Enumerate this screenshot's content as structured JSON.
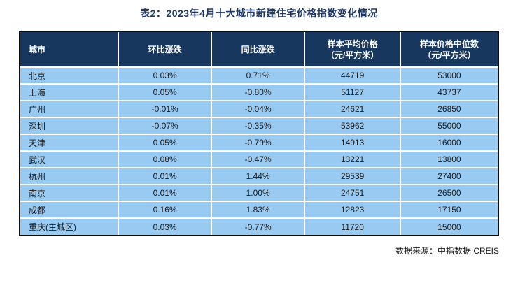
{
  "page": {
    "title": "表2：2023年4月十大城市新建住宅价格指数变化情况",
    "source_note": "数据来源：中指数据 CREIS"
  },
  "colors": {
    "title_text": "#1F3864",
    "header_bg": "#17375E",
    "header_text": "#FFFFFF",
    "row_bg": "#99CAF2",
    "row_text": "#1A1A1A",
    "divider": "#FFFFFF",
    "outer_border": "#0D0D0D",
    "page_bg": "#FFFFFF"
  },
  "table": {
    "headers": [
      {
        "line1": "城市",
        "line2": ""
      },
      {
        "line1": "环比涨跌",
        "line2": ""
      },
      {
        "line1": "同比涨跌",
        "line2": ""
      },
      {
        "line1": "样本平均价格",
        "line2": "（元/平方米）"
      },
      {
        "line1": "样本价格中位数",
        "line2": "（元/平方米）"
      }
    ]
  },
  "chart_data": {
    "type": "table",
    "title": "表2：2023年4月十大城市新建住宅价格指数变化情况",
    "columns": [
      "城市",
      "环比涨跌",
      "同比涨跌",
      "样本平均价格（元/平方米）",
      "样本价格中位数（元/平方米）"
    ],
    "rows": [
      [
        "北京",
        "0.03%",
        "0.71%",
        "44719",
        "53000"
      ],
      [
        "上海",
        "0.05%",
        "-0.80%",
        "51127",
        "43737"
      ],
      [
        "广州",
        "-0.01%",
        "-0.04%",
        "24621",
        "26850"
      ],
      [
        "深圳",
        "-0.07%",
        "-0.35%",
        "53962",
        "55000"
      ],
      [
        "天津",
        "0.05%",
        "-0.79%",
        "14913",
        "16000"
      ],
      [
        "武汉",
        "0.08%",
        "-0.47%",
        "13221",
        "13800"
      ],
      [
        "杭州",
        "0.01%",
        "1.44%",
        "29539",
        "27400"
      ],
      [
        "南京",
        "0.01%",
        "1.00%",
        "24751",
        "26500"
      ],
      [
        "成都",
        "0.16%",
        "1.83%",
        "12823",
        "17150"
      ],
      [
        "重庆(主城区)",
        "0.03%",
        "-0.77%",
        "11720",
        "15000"
      ]
    ],
    "source_note": "数据来源：中指数据 CREIS"
  }
}
